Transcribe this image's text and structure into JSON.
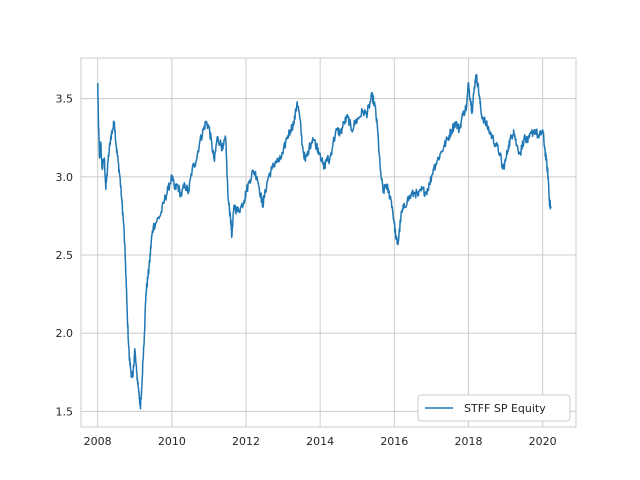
{
  "chart_data": {
    "type": "line",
    "title": "",
    "xlabel": "",
    "ylabel": "",
    "xlim": [
      2007.55,
      2020.9
    ],
    "ylim": [
      1.4,
      3.76
    ],
    "grid": true,
    "legend_position": "lower-right",
    "x_ticks": [
      2008,
      2010,
      2012,
      2014,
      2016,
      2018,
      2020
    ],
    "x_tick_labels": [
      "2008",
      "2010",
      "2012",
      "2014",
      "2016",
      "2018",
      "2020"
    ],
    "y_ticks": [
      1.5,
      2.0,
      2.5,
      3.0,
      3.5
    ],
    "y_tick_labels": [
      "1.5",
      "2.0",
      "2.5",
      "3.0",
      "3.5"
    ],
    "series": [
      {
        "name": "STFF SP Equity",
        "color": "#1f77b4",
        "points": [
          [
            2008.0,
            3.6
          ],
          [
            2008.02,
            3.35
          ],
          [
            2008.05,
            3.12
          ],
          [
            2008.08,
            3.22
          ],
          [
            2008.12,
            3.05
          ],
          [
            2008.18,
            3.12
          ],
          [
            2008.22,
            2.92
          ],
          [
            2008.28,
            3.1
          ],
          [
            2008.35,
            3.25
          ],
          [
            2008.4,
            3.3
          ],
          [
            2008.45,
            3.35
          ],
          [
            2008.5,
            3.2
          ],
          [
            2008.55,
            3.1
          ],
          [
            2008.6,
            3.0
          ],
          [
            2008.65,
            2.85
          ],
          [
            2008.7,
            2.7
          ],
          [
            2008.75,
            2.45
          ],
          [
            2008.8,
            2.1
          ],
          [
            2008.85,
            1.85
          ],
          [
            2008.9,
            1.75
          ],
          [
            2008.95,
            1.72
          ],
          [
            2009.0,
            1.9
          ],
          [
            2009.05,
            1.75
          ],
          [
            2009.1,
            1.65
          ],
          [
            2009.15,
            1.53
          ],
          [
            2009.18,
            1.6
          ],
          [
            2009.22,
            1.82
          ],
          [
            2009.26,
            2.0
          ],
          [
            2009.3,
            2.25
          ],
          [
            2009.35,
            2.35
          ],
          [
            2009.4,
            2.45
          ],
          [
            2009.45,
            2.6
          ],
          [
            2009.5,
            2.68
          ],
          [
            2009.6,
            2.72
          ],
          [
            2009.7,
            2.76
          ],
          [
            2009.8,
            2.85
          ],
          [
            2009.9,
            2.92
          ],
          [
            2010.0,
            3.0
          ],
          [
            2010.08,
            2.92
          ],
          [
            2010.15,
            2.95
          ],
          [
            2010.25,
            2.88
          ],
          [
            2010.35,
            2.95
          ],
          [
            2010.45,
            2.9
          ],
          [
            2010.55,
            3.05
          ],
          [
            2010.65,
            3.1
          ],
          [
            2010.75,
            3.22
          ],
          [
            2010.85,
            3.3
          ],
          [
            2010.92,
            3.35
          ],
          [
            2011.0,
            3.32
          ],
          [
            2011.08,
            3.2
          ],
          [
            2011.15,
            3.1
          ],
          [
            2011.22,
            3.25
          ],
          [
            2011.3,
            3.22
          ],
          [
            2011.38,
            3.18
          ],
          [
            2011.45,
            3.25
          ],
          [
            2011.52,
            2.85
          ],
          [
            2011.58,
            2.75
          ],
          [
            2011.62,
            2.62
          ],
          [
            2011.68,
            2.82
          ],
          [
            2011.75,
            2.78
          ],
          [
            2011.85,
            2.8
          ],
          [
            2011.95,
            2.85
          ],
          [
            2012.0,
            2.9
          ],
          [
            2012.1,
            2.98
          ],
          [
            2012.2,
            3.04
          ],
          [
            2012.3,
            3.0
          ],
          [
            2012.4,
            2.88
          ],
          [
            2012.45,
            2.82
          ],
          [
            2012.52,
            2.9
          ],
          [
            2012.6,
            3.0
          ],
          [
            2012.7,
            3.05
          ],
          [
            2012.8,
            3.1
          ],
          [
            2012.9,
            3.1
          ],
          [
            2013.0,
            3.15
          ],
          [
            2013.1,
            3.25
          ],
          [
            2013.2,
            3.3
          ],
          [
            2013.3,
            3.35
          ],
          [
            2013.38,
            3.48
          ],
          [
            2013.45,
            3.38
          ],
          [
            2013.52,
            3.2
          ],
          [
            2013.6,
            3.1
          ],
          [
            2013.7,
            3.18
          ],
          [
            2013.8,
            3.25
          ],
          [
            2013.9,
            3.2
          ],
          [
            2014.0,
            3.15
          ],
          [
            2014.1,
            3.05
          ],
          [
            2014.18,
            3.12
          ],
          [
            2014.25,
            3.1
          ],
          [
            2014.35,
            3.22
          ],
          [
            2014.45,
            3.3
          ],
          [
            2014.55,
            3.28
          ],
          [
            2014.65,
            3.35
          ],
          [
            2014.75,
            3.38
          ],
          [
            2014.85,
            3.3
          ],
          [
            2014.95,
            3.35
          ],
          [
            2015.05,
            3.38
          ],
          [
            2015.15,
            3.42
          ],
          [
            2015.25,
            3.4
          ],
          [
            2015.32,
            3.45
          ],
          [
            2015.4,
            3.52
          ],
          [
            2015.48,
            3.45
          ],
          [
            2015.55,
            3.3
          ],
          [
            2015.62,
            3.05
          ],
          [
            2015.7,
            2.9
          ],
          [
            2015.78,
            2.95
          ],
          [
            2015.85,
            2.9
          ],
          [
            2015.92,
            2.85
          ],
          [
            2016.0,
            2.7
          ],
          [
            2016.05,
            2.6
          ],
          [
            2016.1,
            2.57
          ],
          [
            2016.18,
            2.75
          ],
          [
            2016.25,
            2.8
          ],
          [
            2016.35,
            2.85
          ],
          [
            2016.45,
            2.88
          ],
          [
            2016.55,
            2.9
          ],
          [
            2016.65,
            2.88
          ],
          [
            2016.75,
            2.92
          ],
          [
            2016.85,
            2.9
          ],
          [
            2016.95,
            2.95
          ],
          [
            2017.05,
            3.05
          ],
          [
            2017.15,
            3.1
          ],
          [
            2017.25,
            3.15
          ],
          [
            2017.35,
            3.2
          ],
          [
            2017.45,
            3.25
          ],
          [
            2017.55,
            3.3
          ],
          [
            2017.65,
            3.35
          ],
          [
            2017.75,
            3.3
          ],
          [
            2017.85,
            3.4
          ],
          [
            2017.95,
            3.45
          ],
          [
            2018.0,
            3.6
          ],
          [
            2018.05,
            3.5
          ],
          [
            2018.1,
            3.42
          ],
          [
            2018.15,
            3.55
          ],
          [
            2018.2,
            3.65
          ],
          [
            2018.25,
            3.6
          ],
          [
            2018.3,
            3.5
          ],
          [
            2018.35,
            3.4
          ],
          [
            2018.45,
            3.35
          ],
          [
            2018.55,
            3.3
          ],
          [
            2018.65,
            3.25
          ],
          [
            2018.75,
            3.2
          ],
          [
            2018.85,
            3.15
          ],
          [
            2018.92,
            3.05
          ],
          [
            2019.0,
            3.1
          ],
          [
            2019.08,
            3.2
          ],
          [
            2019.15,
            3.25
          ],
          [
            2019.22,
            3.3
          ],
          [
            2019.3,
            3.2
          ],
          [
            2019.4,
            3.15
          ],
          [
            2019.5,
            3.25
          ],
          [
            2019.6,
            3.22
          ],
          [
            2019.7,
            3.28
          ],
          [
            2019.8,
            3.3
          ],
          [
            2019.9,
            3.25
          ],
          [
            2020.0,
            3.3
          ],
          [
            2020.05,
            3.2
          ],
          [
            2020.1,
            3.1
          ],
          [
            2020.15,
            3.0
          ],
          [
            2020.18,
            2.85
          ],
          [
            2020.22,
            2.8
          ]
        ]
      }
    ]
  }
}
